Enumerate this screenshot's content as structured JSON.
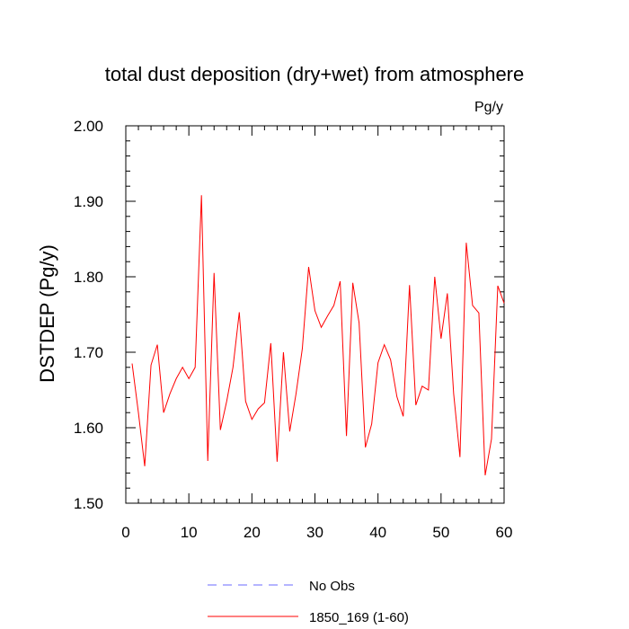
{
  "chart_data": {
    "type": "line",
    "title": "total dust deposition (dry+wet) from atmosphere",
    "units_label": "Pg/y",
    "ylabel": "DSTDEP  (Pg/y)",
    "xlabel": "",
    "xlim": [
      0,
      60
    ],
    "ylim": [
      1.5,
      2.0
    ],
    "x_ticks": [
      "0",
      "10",
      "20",
      "30",
      "40",
      "50",
      "60"
    ],
    "y_ticks": [
      "1.50",
      "1.60",
      "1.70",
      "1.80",
      "1.90",
      "2.00"
    ],
    "grid": false,
    "legend_position": "bottom",
    "legend": [
      {
        "label": "No Obs",
        "color": "#6a6aff",
        "style": "dashed"
      },
      {
        "label": "1850_169 (1-60)",
        "color": "#ff0000",
        "style": "solid"
      }
    ],
    "series": [
      {
        "name": "1850_169 (1-60)",
        "color": "#ff0000",
        "x": [
          1,
          2,
          3,
          4,
          5,
          6,
          7,
          8,
          9,
          10,
          11,
          12,
          13,
          14,
          15,
          16,
          17,
          18,
          19,
          20,
          21,
          22,
          23,
          24,
          25,
          26,
          27,
          28,
          29,
          30,
          31,
          32,
          33,
          34,
          35,
          36,
          37,
          38,
          39,
          40,
          41,
          42,
          43,
          44,
          45,
          46,
          47,
          48,
          49,
          50,
          51,
          52,
          53,
          54,
          55,
          56,
          57,
          58,
          59,
          60
        ],
        "values": [
          1.685,
          1.62,
          1.549,
          1.683,
          1.71,
          1.62,
          1.645,
          1.665,
          1.68,
          1.665,
          1.68,
          1.908,
          1.556,
          1.805,
          1.597,
          1.635,
          1.68,
          1.753,
          1.635,
          1.611,
          1.625,
          1.633,
          1.712,
          1.555,
          1.7,
          1.595,
          1.645,
          1.705,
          1.813,
          1.755,
          1.733,
          1.748,
          1.762,
          1.794,
          1.589,
          1.792,
          1.739,
          1.574,
          1.605,
          1.686,
          1.71,
          1.69,
          1.641,
          1.615,
          1.789,
          1.63,
          1.655,
          1.65,
          1.8,
          1.718,
          1.778,
          1.645,
          1.561,
          1.845,
          1.762,
          1.752,
          1.537,
          1.585,
          1.788,
          1.765
        ]
      }
    ]
  }
}
